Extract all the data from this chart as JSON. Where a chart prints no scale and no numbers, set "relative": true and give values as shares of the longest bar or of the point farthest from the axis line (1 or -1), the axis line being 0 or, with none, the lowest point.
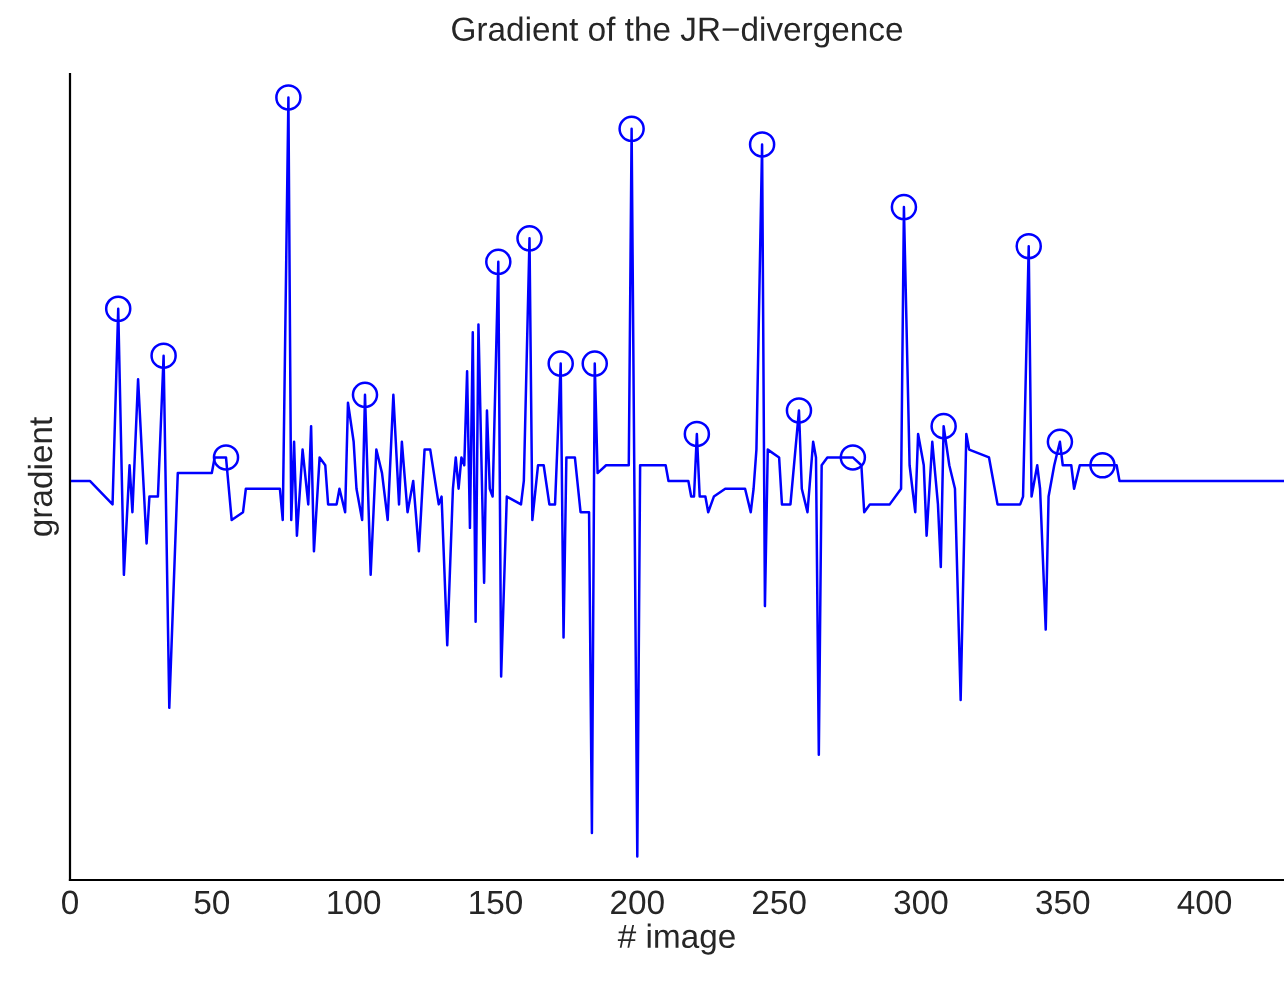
{
  "chart_data": {
    "type": "line",
    "title": "Gradient of the JR−divergence",
    "xlabel": "# image",
    "ylabel": "gradient",
    "relative": true,
    "tick_labels": "x",
    "xlim": [
      0,
      428
    ],
    "xticks": [
      0,
      50,
      100,
      150,
      200,
      250,
      300,
      350,
      400
    ],
    "grid": false,
    "legend": false,
    "series": [
      {
        "color": "#0000ff",
        "marker": "none",
        "x": [
          0,
          7,
          15,
          17,
          19,
          21,
          22,
          24,
          27,
          28,
          31,
          33,
          35,
          38,
          50,
          51,
          55,
          57,
          61,
          62,
          70,
          74,
          75,
          77,
          78,
          79,
          80,
          82,
          84,
          85,
          86,
          88,
          90,
          91,
          94,
          95,
          97,
          98,
          100,
          101,
          103,
          104,
          106,
          108,
          110,
          112,
          114,
          116,
          117,
          119,
          121,
          123,
          125,
          127,
          130,
          131,
          133,
          135,
          136,
          137,
          138,
          139,
          140,
          141,
          142,
          143,
          144,
          146,
          147,
          148,
          149,
          151,
          152,
          154,
          159,
          160,
          162,
          163,
          165,
          167,
          169,
          171,
          173,
          174,
          175,
          178,
          180,
          183,
          184,
          185,
          186,
          189,
          197,
          198,
          200,
          201,
          210,
          211,
          218,
          219,
          220,
          221,
          222,
          224,
          225,
          227,
          231,
          238,
          240,
          241,
          242,
          244,
          245,
          246,
          250,
          251,
          254,
          257,
          258,
          260,
          262,
          263,
          264,
          265,
          267,
          270,
          273,
          276,
          279,
          280,
          282,
          289,
          293,
          294,
          296,
          298,
          299,
          301,
          302,
          304,
          306,
          307,
          308,
          310,
          312,
          314,
          316,
          317,
          324,
          325,
          327,
          335,
          336,
          338,
          339,
          341,
          342,
          344,
          345,
          347,
          349,
          350,
          353,
          354,
          356,
          364,
          369,
          370,
          428
        ],
        "values": [
          0.51,
          0.51,
          0.48,
          0.73,
          0.39,
          0.53,
          0.47,
          0.64,
          0.43,
          0.49,
          0.49,
          0.67,
          0.22,
          0.52,
          0.52,
          0.54,
          0.54,
          0.46,
          0.47,
          0.5,
          0.5,
          0.5,
          0.46,
          1.0,
          0.46,
          0.56,
          0.44,
          0.55,
          0.48,
          0.58,
          0.42,
          0.54,
          0.53,
          0.48,
          0.48,
          0.5,
          0.47,
          0.61,
          0.56,
          0.5,
          0.46,
          0.62,
          0.39,
          0.55,
          0.52,
          0.46,
          0.62,
          0.48,
          0.56,
          0.47,
          0.51,
          0.42,
          0.55,
          0.55,
          0.48,
          0.49,
          0.3,
          0.5,
          0.54,
          0.5,
          0.54,
          0.53,
          0.65,
          0.45,
          0.7,
          0.33,
          0.71,
          0.38,
          0.6,
          0.5,
          0.49,
          0.79,
          0.26,
          0.49,
          0.48,
          0.51,
          0.82,
          0.46,
          0.53,
          0.53,
          0.48,
          0.48,
          0.66,
          0.31,
          0.54,
          0.54,
          0.47,
          0.47,
          0.06,
          0.66,
          0.52,
          0.53,
          0.53,
          0.96,
          0.03,
          0.53,
          0.53,
          0.51,
          0.51,
          0.49,
          0.49,
          0.57,
          0.49,
          0.49,
          0.47,
          0.49,
          0.5,
          0.5,
          0.47,
          0.5,
          0.55,
          0.94,
          0.35,
          0.55,
          0.54,
          0.48,
          0.48,
          0.6,
          0.5,
          0.47,
          0.56,
          0.54,
          0.16,
          0.53,
          0.54,
          0.54,
          0.54,
          0.54,
          0.53,
          0.47,
          0.48,
          0.48,
          0.5,
          0.86,
          0.53,
          0.47,
          0.57,
          0.53,
          0.44,
          0.56,
          0.48,
          0.4,
          0.58,
          0.53,
          0.5,
          0.23,
          0.57,
          0.55,
          0.54,
          0.52,
          0.48,
          0.48,
          0.49,
          0.81,
          0.49,
          0.53,
          0.5,
          0.32,
          0.49,
          0.53,
          0.56,
          0.53,
          0.53,
          0.5,
          0.53,
          0.53,
          0.53,
          0.51,
          0.51
        ]
      },
      {
        "type": "scatter",
        "color": "#0000ff",
        "marker": "circle",
        "x": [
          17,
          33,
          55,
          77,
          104,
          151,
          162,
          173,
          185,
          198,
          221,
          244,
          257,
          276,
          294,
          308,
          338,
          349,
          364
        ],
        "values": [
          0.73,
          0.67,
          0.54,
          1.0,
          0.62,
          0.79,
          0.82,
          0.66,
          0.66,
          0.96,
          0.57,
          0.94,
          0.6,
          0.54,
          0.86,
          0.58,
          0.81,
          0.56,
          0.53
        ]
      }
    ]
  }
}
